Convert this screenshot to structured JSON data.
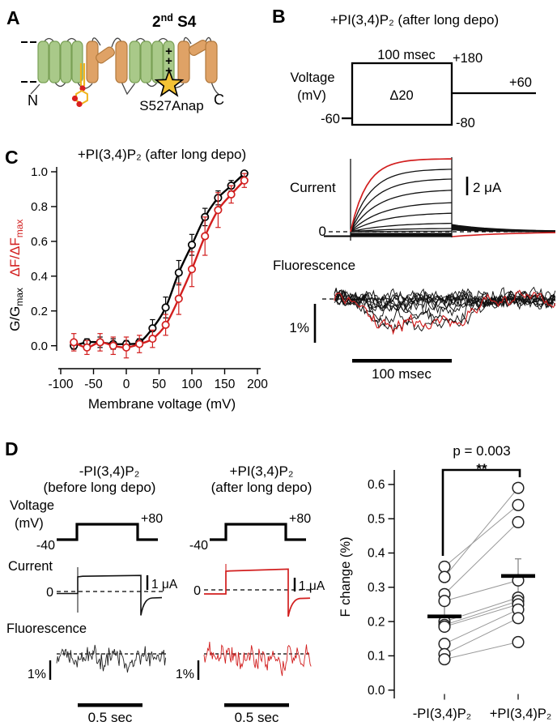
{
  "colors": {
    "red_trace": "#d21f1f",
    "red_label": "#e02419",
    "green_helix": "#a9c989",
    "orange_helix": "#dfa266",
    "star_yellow": "#f3c235",
    "plus_blue": "#1b2a5a",
    "pip_yellow": "#f0b41c",
    "pip_dot_red": "#da1f1f",
    "pair_line_gray": "#999999"
  },
  "panelA": {
    "label": "A",
    "s4": {
      "pre": "2",
      "sup": "nd",
      "post": " S4"
    },
    "n_term": "N",
    "c_term": "C",
    "site": "S527Anap"
  },
  "panelB": {
    "label": "B",
    "title": "+PI(3,4)P₂ (after long depo)",
    "protocol": {
      "duration": "100 msec",
      "vmax": "+180",
      "delta": "Δ20",
      "vhold": "-60",
      "vtail": "+60",
      "vpost": "-80",
      "axis1": "Voltage",
      "axis2": "(mV)"
    },
    "current": {
      "label": "Current",
      "zero": "0",
      "scale": "2 μA"
    },
    "fluor": {
      "label": "Fluorescence",
      "scale": "1%",
      "timebar": "100 msec"
    }
  },
  "panelC": {
    "label": "C",
    "title": "+PI(3,4)P₂ (after long depo)",
    "ylabel_red": {
      "pre": "ΔF/ΔF",
      "sub": "max"
    },
    "ylabel_black": {
      "pre": "G/G",
      "sub": "max"
    }
  },
  "panelD": {
    "label": "D",
    "cond_left": {
      "line1": "-PI(3,4)P₂",
      "line2": "(before long depo)"
    },
    "cond_right": {
      "line1": "+PI(3,4)P₂",
      "line2": "(after long depo)"
    },
    "voltage": {
      "axis1": "Voltage",
      "axis2": "(mV)",
      "low": "-40",
      "high": "+80"
    },
    "current": {
      "label": "Current",
      "zero": "0",
      "scale": "1 μA"
    },
    "fluor": {
      "label": "Fluorescence",
      "scale": "1%"
    },
    "timebar": "0.5 sec"
  },
  "chart_data": [
    {
      "id": "gv-fv-curves",
      "type": "line",
      "title": "+PI(3,4)P₂ (after long depo)",
      "xlabel": "Membrane voltage (mV)",
      "ylabels": [
        "G/Gmax",
        "ΔF/ΔFmax"
      ],
      "xlim": [
        -100,
        200
      ],
      "ylim": [
        0,
        1.0
      ],
      "xticks": [
        -100,
        -50,
        0,
        50,
        100,
        150,
        200
      ],
      "yticks": [
        0.0,
        0.2,
        0.4,
        0.6,
        0.8,
        1.0
      ],
      "x": [
        -80,
        -60,
        -40,
        -20,
        0,
        20,
        40,
        60,
        80,
        100,
        120,
        140,
        160,
        180
      ],
      "series": [
        {
          "name": "G/Gmax",
          "color": "#000000",
          "values": [
            0.0,
            0.02,
            0.02,
            0.01,
            0.01,
            0.02,
            0.1,
            0.22,
            0.42,
            0.58,
            0.74,
            0.85,
            0.92,
            0.99
          ],
          "err": [
            0.02,
            0.02,
            0.03,
            0.03,
            0.02,
            0.02,
            0.05,
            0.06,
            0.07,
            0.06,
            0.05,
            0.04,
            0.03,
            0.01
          ]
        },
        {
          "name": "ΔF/ΔFmax",
          "color": "#d21f1f",
          "values": [
            0.02,
            -0.01,
            0.02,
            0.0,
            -0.01,
            0.01,
            0.04,
            0.12,
            0.27,
            0.44,
            0.63,
            0.78,
            0.87,
            0.95
          ],
          "err": [
            0.05,
            0.04,
            0.05,
            0.05,
            0.06,
            0.05,
            0.05,
            0.06,
            0.09,
            0.1,
            0.11,
            0.1,
            0.05,
            0.04
          ]
        }
      ]
    },
    {
      "id": "f-change-paired",
      "type": "paired-scatter",
      "ylabel": "F change (%)",
      "ylim": [
        0,
        0.65
      ],
      "yticks": [
        0.0,
        0.1,
        0.2,
        0.3,
        0.4,
        0.5,
        0.6
      ],
      "categories": [
        "-PI(3,4)P₂",
        "+PI(3,4)P₂"
      ],
      "pairs": [
        [
          0.36,
          0.54
        ],
        [
          0.33,
          0.59
        ],
        [
          0.28,
          0.49
        ],
        [
          0.26,
          0.32
        ],
        [
          0.2,
          0.27
        ],
        [
          0.19,
          0.26
        ],
        [
          0.185,
          0.25
        ],
        [
          0.135,
          0.235
        ],
        [
          0.105,
          0.21
        ],
        [
          0.09,
          0.14
        ]
      ],
      "means": [
        0.215,
        0.333
      ],
      "sem": [
        0.04,
        0.05
      ],
      "p_label": "p = 0.003",
      "sig": "**"
    }
  ]
}
